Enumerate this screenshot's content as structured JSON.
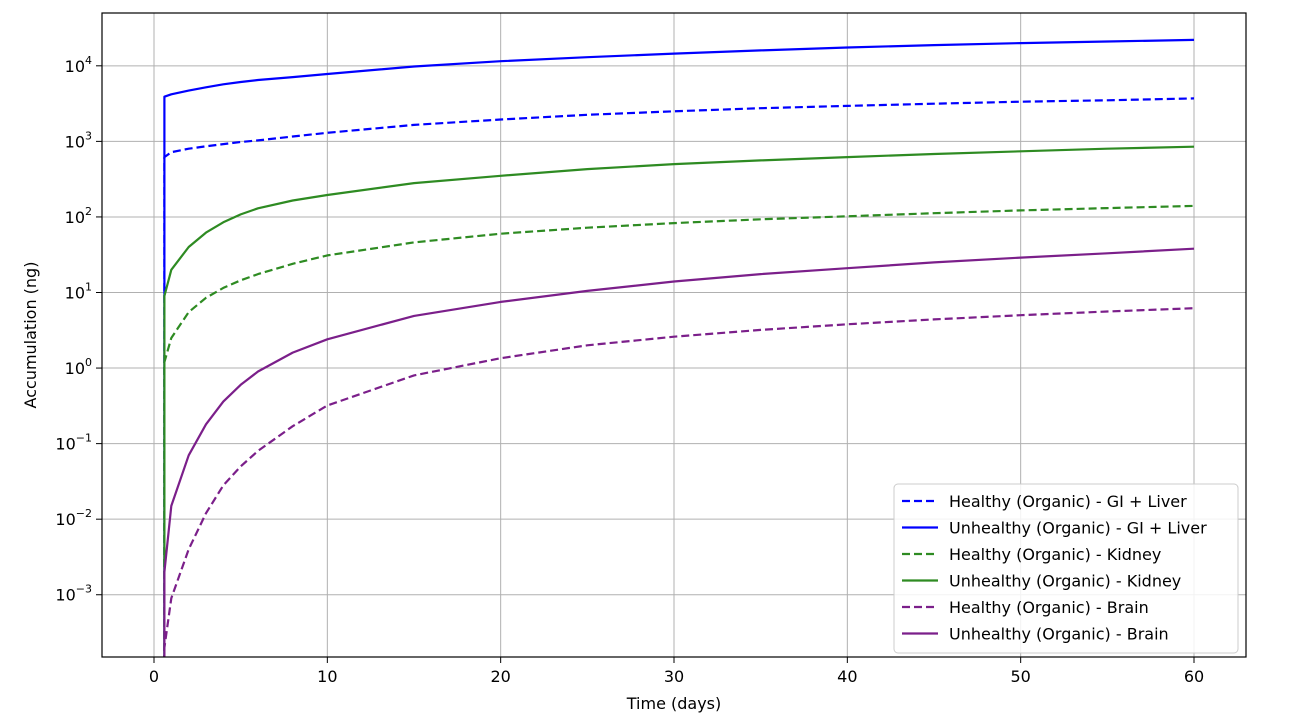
{
  "chart_data": {
    "type": "line",
    "title": "",
    "xlabel": "Time (days)",
    "ylabel": "Accumulation (ng)",
    "xlim": [
      -3,
      63
    ],
    "ylim": [
      0.00015,
      50000
    ],
    "yscale": "log",
    "grid": true,
    "legend_position": "lower-right",
    "x_ticks": [
      0,
      10,
      20,
      30,
      40,
      50,
      60
    ],
    "x_tick_labels": [
      "0",
      "10",
      "20",
      "30",
      "40",
      "50",
      "60"
    ],
    "y_ticks": [
      0.001,
      0.01,
      0.1,
      1,
      10,
      100,
      1000,
      10000
    ],
    "y_tick_labels": [
      {
        "base": "10",
        "exp": "−3"
      },
      {
        "base": "10",
        "exp": "−2"
      },
      {
        "base": "10",
        "exp": "−1"
      },
      {
        "base": "10",
        "exp": "0"
      },
      {
        "base": "10",
        "exp": "1"
      },
      {
        "base": "10",
        "exp": "2"
      },
      {
        "base": "10",
        "exp": "3"
      },
      {
        "base": "10",
        "exp": "4"
      }
    ],
    "x": [
      0.6,
      1,
      2,
      3,
      4,
      5,
      6,
      8,
      10,
      15,
      20,
      25,
      30,
      35,
      40,
      45,
      50,
      55,
      60
    ],
    "series": [
      {
        "name": "Healthy (Organic) - GI + Liver",
        "color": "#0000ff",
        "dash": "dashed",
        "values": [
          620,
          720,
          800,
          860,
          920,
          980,
          1030,
          1160,
          1300,
          1650,
          1950,
          2250,
          2500,
          2750,
          2950,
          3150,
          3350,
          3500,
          3700
        ]
      },
      {
        "name": "Unhealthy (Organic) - GI + Liver",
        "color": "#0000ff",
        "dash": "solid",
        "values": [
          3900,
          4200,
          4700,
          5200,
          5700,
          6100,
          6500,
          7100,
          7800,
          9800,
          11500,
          13000,
          14500,
          16000,
          17500,
          18800,
          20000,
          21000,
          22000
        ]
      },
      {
        "name": "Healthy (Organic) - Kidney",
        "color": "#2e8b22",
        "dash": "dashed",
        "values": [
          1.2,
          2.5,
          5.5,
          8.5,
          11.5,
          14.5,
          17.5,
          24,
          31,
          46,
          60,
          72,
          83,
          93,
          102,
          112,
          122,
          131,
          140
        ]
      },
      {
        "name": "Unhealthy (Organic) - Kidney",
        "color": "#2e8b22",
        "dash": "solid",
        "values": [
          9,
          20,
          40,
          62,
          85,
          108,
          130,
          165,
          195,
          280,
          350,
          430,
          500,
          560,
          620,
          680,
          740,
          800,
          850
        ]
      },
      {
        "name": "Healthy (Organic) - Brain",
        "color": "#7b1f8a",
        "dash": "dashed",
        "values": [
          0.0002,
          0.0009,
          0.004,
          0.012,
          0.028,
          0.05,
          0.08,
          0.17,
          0.32,
          0.8,
          1.35,
          2.0,
          2.6,
          3.2,
          3.8,
          4.4,
          5.0,
          5.6,
          6.2
        ]
      },
      {
        "name": "Unhealthy (Organic) - Brain",
        "color": "#7b1f8a",
        "dash": "solid",
        "values": [
          0.002,
          0.015,
          0.07,
          0.18,
          0.36,
          0.6,
          0.9,
          1.6,
          2.4,
          4.9,
          7.5,
          10.5,
          14,
          17.5,
          21,
          25,
          29,
          33,
          38
        ]
      }
    ]
  }
}
